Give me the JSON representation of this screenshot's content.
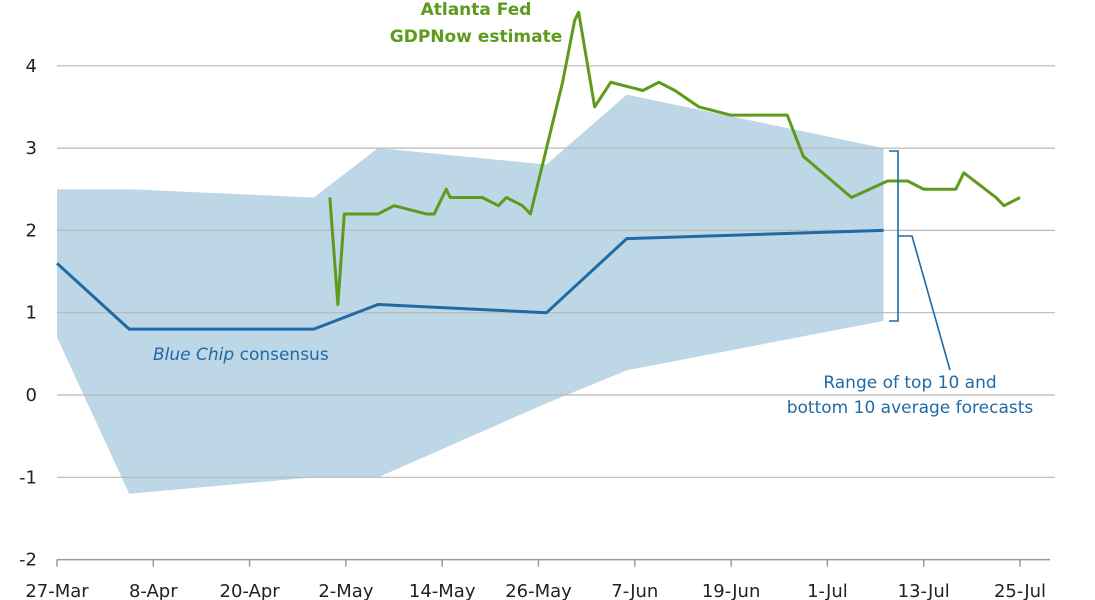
{
  "chart_data": {
    "type": "line",
    "title": "",
    "xlabel": "",
    "ylabel": "",
    "ylim": [
      -2,
      4.6
    ],
    "y_ticks": [
      "4",
      "3",
      "2",
      "1",
      "0",
      "-1",
      "-2"
    ],
    "x_ticks": [
      "27-Mar",
      "8-Apr",
      "20-Apr",
      "2-May",
      "14-May",
      "26-May",
      "7-Jun",
      "19-Jun",
      "1-Jul",
      "13-Jul",
      "25-Jul"
    ],
    "x_start": 0,
    "x_end": 120,
    "series": [
      {
        "name": "Blue Chip consensus",
        "color": "#1f6aa5",
        "x": [
          0,
          9,
          32,
          40,
          61,
          71,
          103
        ],
        "values": [
          1.6,
          0.8,
          0.8,
          1.1,
          1.0,
          1.9,
          2.0
        ]
      },
      {
        "name": "Atlanta Fed GDPNow estimate",
        "color": "#5e9a1c",
        "x": [
          34.0,
          35.0,
          35.8,
          36.5,
          40.0,
          42.0,
          46.0,
          47.0,
          48.5,
          49.0,
          52.0,
          53.0,
          55.0,
          56.0,
          58.0,
          59.0,
          61.0,
          63.0,
          64.5,
          65.0,
          67.0,
          69.0,
          73.0,
          75.0,
          77.0,
          80.0,
          84.0,
          86.0,
          88.0,
          91.0,
          93.0,
          99.0,
          103.5,
          106.0,
          108.0,
          110.0,
          111.0,
          112.0,
          113.0,
          117.0,
          118.0,
          120.0
        ],
        "values": [
          2.4,
          1.1,
          2.2,
          2.2,
          2.2,
          2.3,
          2.2,
          2.2,
          2.5,
          2.4,
          2.4,
          2.4,
          2.3,
          2.4,
          2.3,
          2.2,
          3.0,
          3.8,
          4.55,
          4.65,
          3.5,
          3.8,
          3.7,
          3.8,
          3.7,
          3.5,
          3.4,
          3.4,
          3.4,
          3.4,
          2.9,
          2.4,
          2.6,
          2.6,
          2.5,
          2.5,
          2.5,
          2.5,
          2.7,
          2.4,
          2.3,
          2.4
        ]
      }
    ],
    "band": {
      "name": "Range of top 10 and bottom 10 average forecasts",
      "color": "#bdd7e7",
      "x": [
        0,
        9,
        32,
        40,
        61,
        71,
        103
      ],
      "upper": [
        2.5,
        2.5,
        2.4,
        3.0,
        2.8,
        3.65,
        3.0
      ],
      "lower": [
        0.7,
        -1.2,
        -1.0,
        -1.0,
        -0.1,
        0.3,
        0.9
      ]
    },
    "annotations": {
      "gdpnow_line1": "Atlanta Fed",
      "gdpnow_line2": "GDPNow estimate",
      "bluechip_italic": "Blue Chip",
      "bluechip_rest": " consensus",
      "range_line1": "Range of top 10 and",
      "range_line2": "bottom 10 average forecasts"
    }
  }
}
